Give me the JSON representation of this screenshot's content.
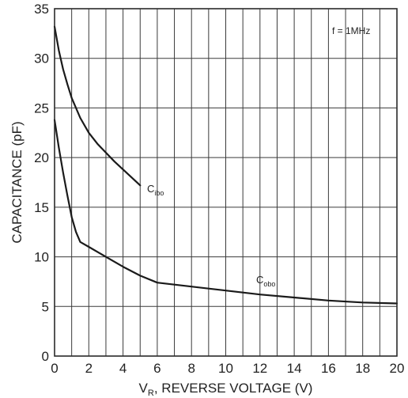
{
  "chart_data": {
    "type": "line",
    "title": "",
    "xlabel": "V_R, REVERSE VOLTAGE (V)",
    "xlabel_parts": {
      "main": "V",
      "sub": "R",
      "rest": ", REVERSE VOLTAGE (V)"
    },
    "ylabel": "CAPACITANCE (pF)",
    "xlim": [
      0,
      20
    ],
    "ylim": [
      0,
      35
    ],
    "x_ticks": [
      "0",
      "2",
      "4",
      "6",
      "8",
      "10",
      "12",
      "14",
      "16",
      "18",
      "20"
    ],
    "y_ticks": [
      "0",
      "5",
      "10",
      "15",
      "20",
      "25",
      "30",
      "35"
    ],
    "grid": true,
    "grid_x_step": 1,
    "grid_y_step": 5,
    "annotation": "f = 1MHz",
    "series": [
      {
        "name": "Cibo",
        "label_main": "C",
        "label_sub": "ibo",
        "x": [
          0,
          0.25,
          0.5,
          0.75,
          1,
          1.5,
          2,
          2.5,
          3,
          3.5,
          4,
          4.5,
          5
        ],
        "y": [
          33.2,
          30.8,
          28.9,
          27.4,
          26.0,
          24.0,
          22.5,
          21.4,
          20.5,
          19.6,
          18.8,
          18.0,
          17.2
        ]
      },
      {
        "name": "Cobo",
        "label_main": "C",
        "label_sub": "obo",
        "x": [
          0,
          0.25,
          0.5,
          0.75,
          1,
          1.25,
          1.5,
          2,
          3,
          4,
          5,
          6,
          8,
          10,
          12,
          14,
          16,
          18,
          20
        ],
        "y": [
          23.8,
          21.0,
          18.5,
          16.2,
          14.0,
          12.5,
          11.5,
          11.0,
          10.0,
          9.0,
          8.1,
          7.4,
          7.0,
          6.6,
          6.2,
          5.9,
          5.6,
          5.4,
          5.3
        ]
      }
    ]
  }
}
